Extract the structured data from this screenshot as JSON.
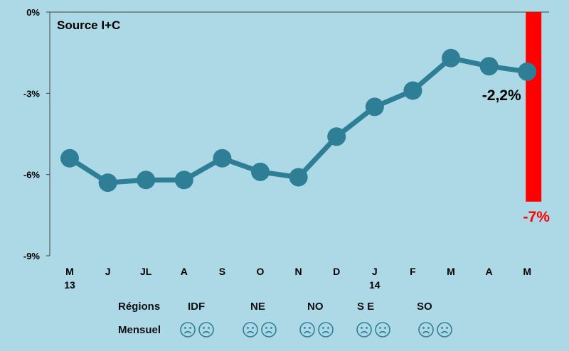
{
  "chart_data": {
    "type": "line",
    "title": "Source I+C",
    "x": [
      "M",
      "J",
      "JL",
      "A",
      "S",
      "O",
      "N",
      "D",
      "J",
      "F",
      "M",
      "A",
      "M"
    ],
    "x_sublabels": [
      "13",
      "",
      "",
      "",
      "",
      "",
      "",
      "",
      "14",
      "",
      "",
      "",
      ""
    ],
    "series": [
      {
        "values": [
          -5.4,
          -6.3,
          -6.2,
          -6.2,
          -5.4,
          -5.9,
          -6.1,
          -4.6,
          -3.5,
          -2.9,
          -1.7,
          -2.0,
          -2.2
        ]
      }
    ],
    "ylim": [
      -9,
      0
    ],
    "yticks": [
      "0%",
      "-3%",
      "-6%",
      "-9%"
    ],
    "ytick_values": [
      0,
      -3,
      -6,
      -9
    ],
    "highlight_bar": {
      "category_index": 12,
      "value": -7,
      "label": "-7%"
    },
    "point_label": {
      "index": 12,
      "text": "-2,2%"
    },
    "grid": false,
    "colors": {
      "line": "#2e7f96",
      "bar": "#ff0000",
      "background": "#add8e6"
    }
  },
  "footer": {
    "regions_label": "Régions",
    "monthly_label": "Mensuel",
    "regions": [
      "IDF",
      "NE",
      "NO",
      "S E",
      "SO"
    ],
    "face_icon": "sad-face-icon",
    "face_color": "#2e7f96"
  }
}
